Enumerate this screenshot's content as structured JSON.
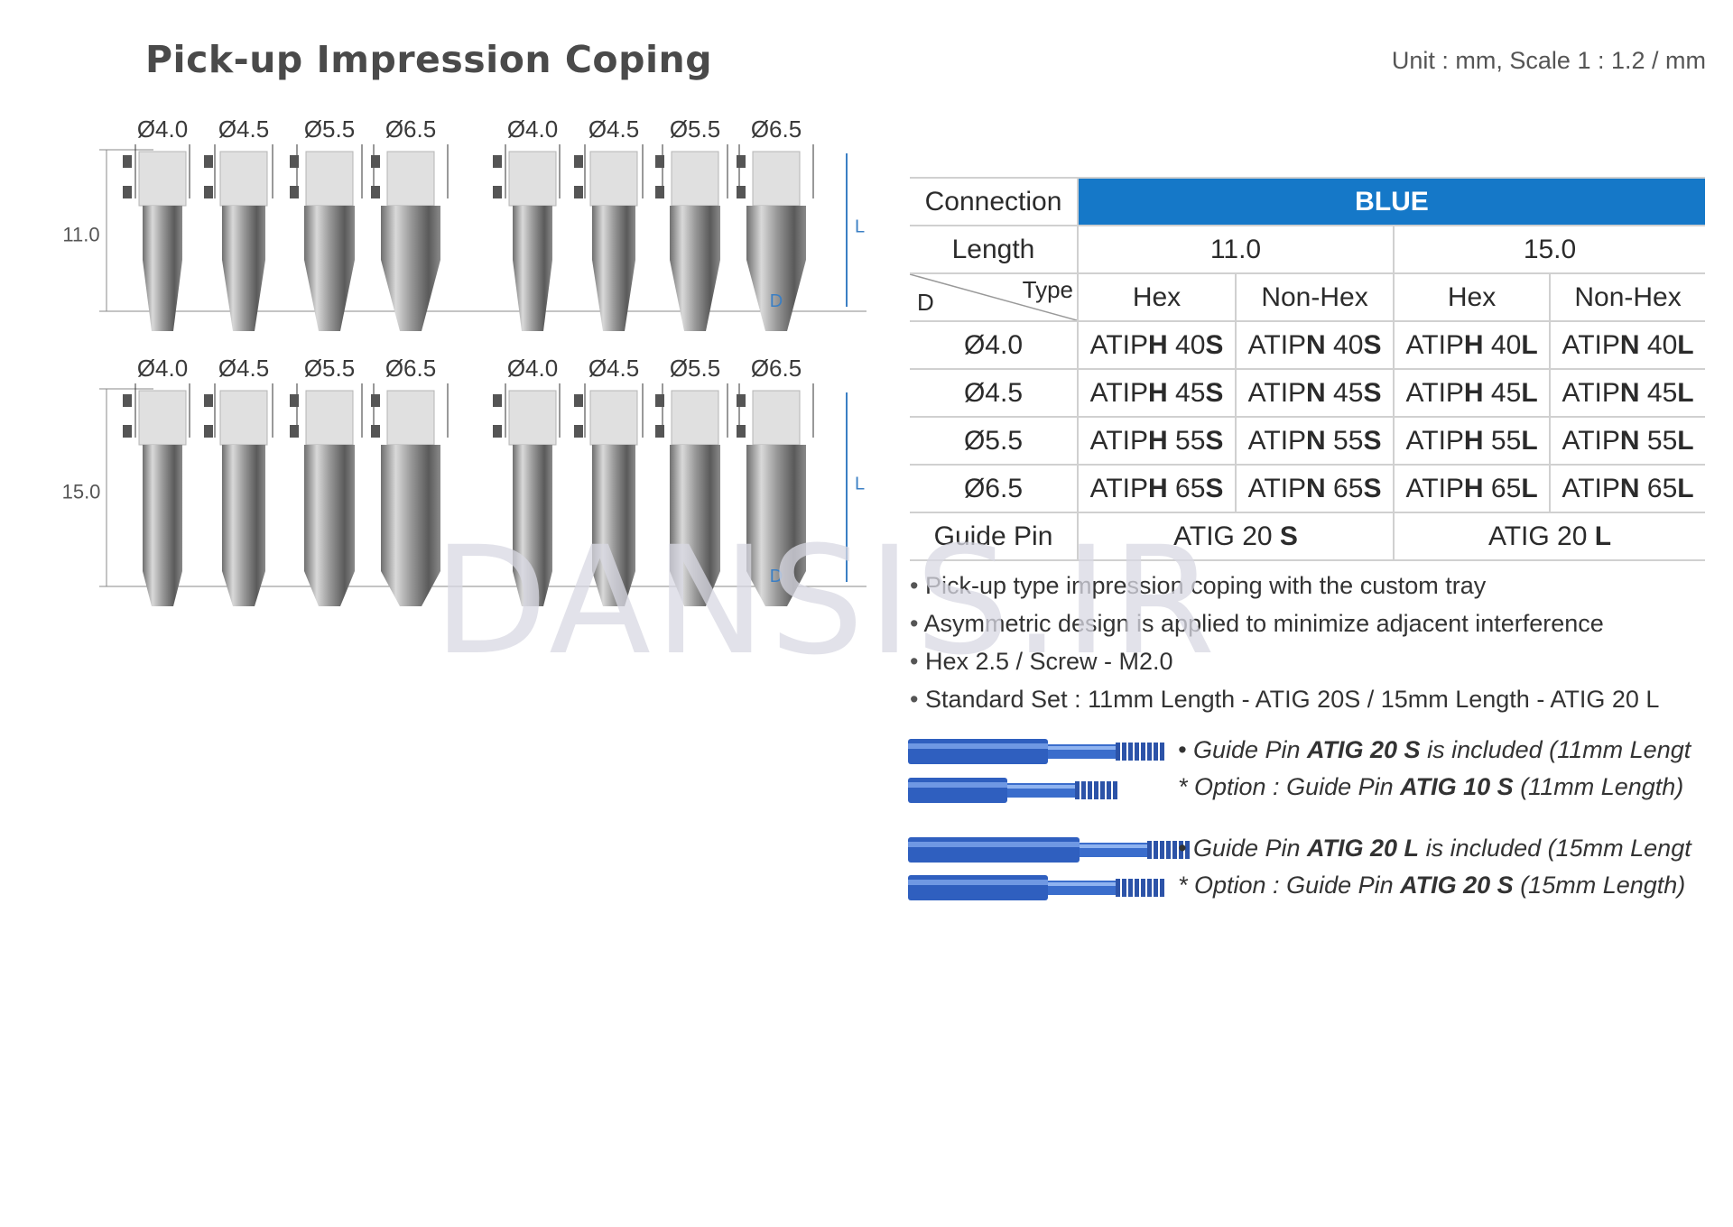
{
  "title": "Pick-up Impression Coping",
  "unit_note": "Unit : mm,  Scale 1 : 1.2 / mm",
  "figure": {
    "diameters": [
      "Ø4.0",
      "Ø4.5",
      "Ø5.5",
      "Ø6.5",
      "Ø4.0",
      "Ø4.5",
      "Ø5.5",
      "Ø6.5"
    ],
    "lengths": [
      "11.0",
      "15.0"
    ],
    "l_label": "L",
    "d_label": "D"
  },
  "table": {
    "connection_label": "Connection",
    "connection_value": "BLUE",
    "connection_color": "#1578c8",
    "length_label": "Length",
    "lengths": [
      "11.0",
      "15.0"
    ],
    "corner_d": "D",
    "corner_type": "Type",
    "types": [
      "Hex",
      "Non-Hex",
      "Hex",
      "Non-Hex"
    ],
    "rows": [
      {
        "d": "Ø4.0",
        "codes": [
          [
            "ATIP",
            "H",
            " 40",
            "S"
          ],
          [
            "ATIP",
            "N",
            " 40",
            "S"
          ],
          [
            "ATIP",
            "H",
            " 40",
            "L"
          ],
          [
            "ATIP",
            "N",
            " 40",
            "L"
          ]
        ]
      },
      {
        "d": "Ø4.5",
        "codes": [
          [
            "ATIP",
            "H",
            " 45",
            "S"
          ],
          [
            "ATIP",
            "N",
            " 45",
            "S"
          ],
          [
            "ATIP",
            "H",
            " 45",
            "L"
          ],
          [
            "ATIP",
            "N",
            " 45",
            "L"
          ]
        ]
      },
      {
        "d": "Ø5.5",
        "codes": [
          [
            "ATIP",
            "H",
            " 55",
            "S"
          ],
          [
            "ATIP",
            "N",
            " 55",
            "S"
          ],
          [
            "ATIP",
            "H",
            " 55",
            "L"
          ],
          [
            "ATIP",
            "N",
            " 55",
            "L"
          ]
        ]
      },
      {
        "d": "Ø6.5",
        "codes": [
          [
            "ATIP",
            "H",
            " 65",
            "S"
          ],
          [
            "ATIP",
            "N",
            " 65",
            "S"
          ],
          [
            "ATIP",
            "H",
            " 65",
            "L"
          ],
          [
            "ATIP",
            "N",
            " 65",
            "L"
          ]
        ]
      }
    ],
    "guide_pin_label": "Guide Pin",
    "guide_pins": [
      [
        "ATIG 20 ",
        "S"
      ],
      [
        "ATIG 20 ",
        "L"
      ]
    ]
  },
  "bullets": [
    "Pick-up type impression coping with the custom tray",
    "Asymmetric design is applied to minimize adjacent interference",
    "Hex 2.5 / Screw -  M2.0",
    "Standard Set : 11mm Length - ATIG 20S  / 15mm Length - ATIG 20 L"
  ],
  "guide_pin_notes": [
    {
      "prefix": "• Guide Pin ",
      "code": "ATIG 20 S",
      "suffix": " is included (11mm Lengt"
    },
    {
      "prefix": "* Option : Guide Pin ",
      "code": "ATIG 10 S",
      "suffix": " (11mm Length)"
    },
    {
      "prefix": "• Guide Pin ",
      "code": "ATIG 20 L",
      "suffix": " is included (15mm Lengt"
    },
    {
      "prefix": "* Option : Guide Pin ",
      "code": "ATIG 20 S",
      "suffix": " (15mm Length)"
    }
  ],
  "watermark": "DANSIS.IR"
}
